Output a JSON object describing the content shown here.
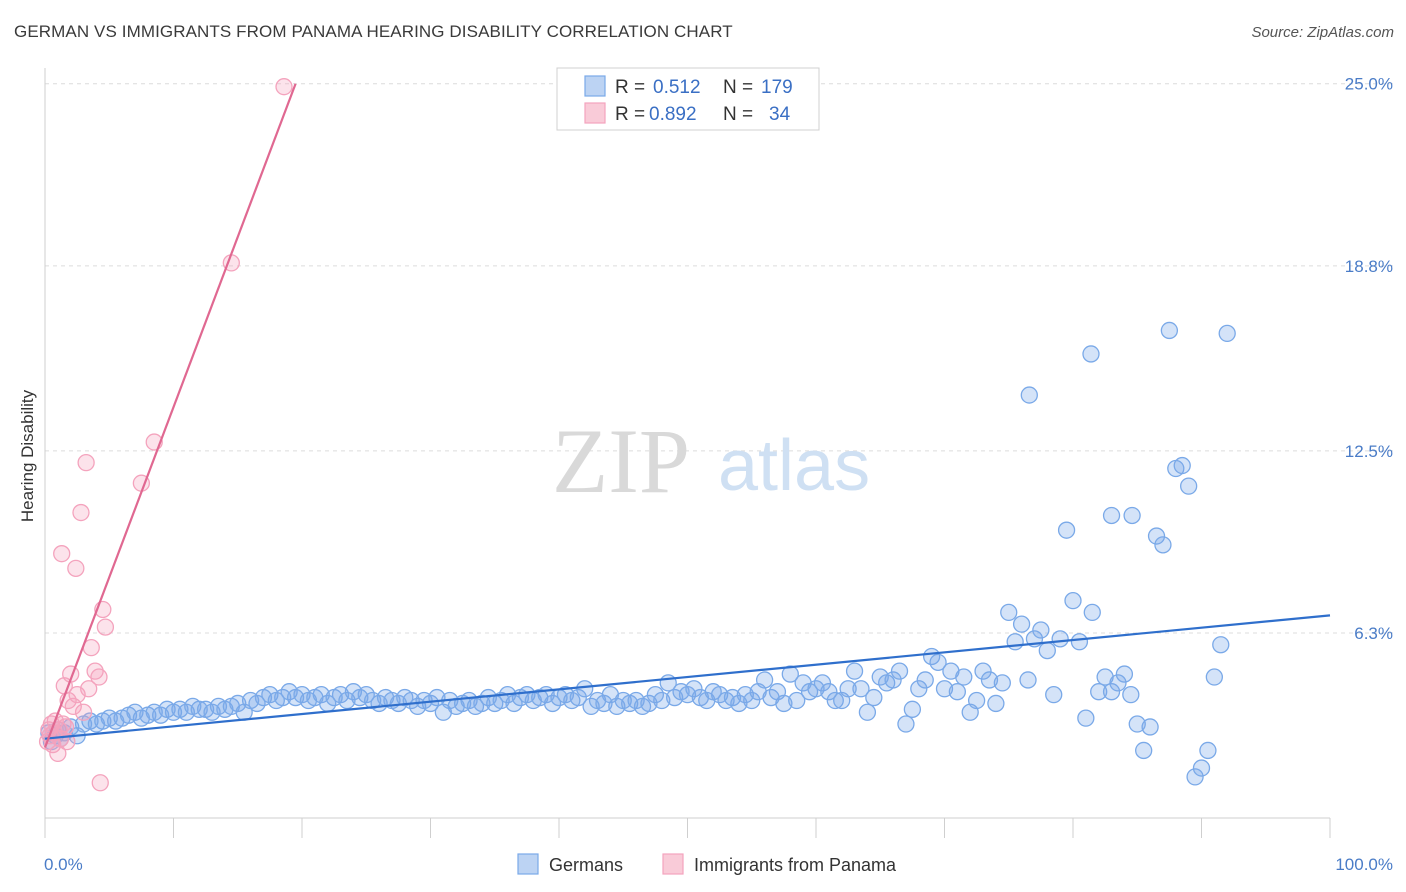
{
  "title": "GERMAN VS IMMIGRANTS FROM PANAMA HEARING DISABILITY CORRELATION CHART",
  "source": "Source: ZipAtlas.com",
  "watermark": {
    "zip": "ZIP",
    "atlas": "atlas"
  },
  "colors": {
    "german": "#7aa9e8",
    "german_line": "#2f6fcc",
    "panama": "#f4a3bd",
    "panama_line": "#e06891",
    "axis_text": "#4a7cc7"
  },
  "legend": {
    "rows": [
      {
        "r_label": "R = ",
        "r_value": "0.512",
        "n_label": "N = ",
        "n_value": "179"
      },
      {
        "r_label": "R = ",
        "r_value": "0.892",
        "n_label": "N = ",
        "n_value": "34"
      }
    ]
  },
  "bottom_legend": [
    "Germans",
    "Immigrants from Panama"
  ],
  "chart_data": {
    "type": "scatter",
    "ylabel": "Hearing Disability",
    "xlim": [
      0,
      100
    ],
    "ylim": [
      0,
      25.4
    ],
    "x_tick_labels": [
      "0.0%",
      "100.0%"
    ],
    "y_ticks": [
      6.3,
      12.5,
      18.8,
      25.0
    ],
    "y_tick_labels": [
      "6.3%",
      "12.5%",
      "18.8%",
      "25.0%"
    ],
    "grid": "horizontal dashed",
    "series": [
      {
        "name": "Germans",
        "trend": [
          [
            0,
            2.7
          ],
          [
            100,
            6.9
          ]
        ],
        "points": [
          [
            0.3,
            2.9
          ],
          [
            0.5,
            2.6
          ],
          [
            0.8,
            2.8
          ],
          [
            1.0,
            3.0
          ],
          [
            1.2,
            2.7
          ],
          [
            1.5,
            2.9
          ],
          [
            2.0,
            3.1
          ],
          [
            2.5,
            2.8
          ],
          [
            3.0,
            3.2
          ],
          [
            3.5,
            3.3
          ],
          [
            4.0,
            3.2
          ],
          [
            4.5,
            3.3
          ],
          [
            5.0,
            3.4
          ],
          [
            5.5,
            3.3
          ],
          [
            6.0,
            3.4
          ],
          [
            6.5,
            3.5
          ],
          [
            7.0,
            3.6
          ],
          [
            7.5,
            3.4
          ],
          [
            8.0,
            3.5
          ],
          [
            8.5,
            3.6
          ],
          [
            9.0,
            3.5
          ],
          [
            9.5,
            3.7
          ],
          [
            10.0,
            3.6
          ],
          [
            10.5,
            3.7
          ],
          [
            11.0,
            3.6
          ],
          [
            11.5,
            3.8
          ],
          [
            12.0,
            3.7
          ],
          [
            12.5,
            3.7
          ],
          [
            13.0,
            3.6
          ],
          [
            13.5,
            3.8
          ],
          [
            14.0,
            3.7
          ],
          [
            14.5,
            3.8
          ],
          [
            15.0,
            3.9
          ],
          [
            15.5,
            3.6
          ],
          [
            16.0,
            4.0
          ],
          [
            16.5,
            3.9
          ],
          [
            17.0,
            4.1
          ],
          [
            17.5,
            4.2
          ],
          [
            18.0,
            4.0
          ],
          [
            18.5,
            4.1
          ],
          [
            19.0,
            4.3
          ],
          [
            19.5,
            4.1
          ],
          [
            20.0,
            4.2
          ],
          [
            20.5,
            4.0
          ],
          [
            21.0,
            4.1
          ],
          [
            21.5,
            4.2
          ],
          [
            22.0,
            3.9
          ],
          [
            22.5,
            4.1
          ],
          [
            23.0,
            4.2
          ],
          [
            23.5,
            4.0
          ],
          [
            24.0,
            4.3
          ],
          [
            24.5,
            4.1
          ],
          [
            25.0,
            4.2
          ],
          [
            25.5,
            4.0
          ],
          [
            26.0,
            3.9
          ],
          [
            26.5,
            4.1
          ],
          [
            27.0,
            4.0
          ],
          [
            27.5,
            3.9
          ],
          [
            28.0,
            4.1
          ],
          [
            28.5,
            4.0
          ],
          [
            29.0,
            3.8
          ],
          [
            29.5,
            4.0
          ],
          [
            30.0,
            3.9
          ],
          [
            30.5,
            4.1
          ],
          [
            31.0,
            3.6
          ],
          [
            31.5,
            4.0
          ],
          [
            32.0,
            3.8
          ],
          [
            32.5,
            3.9
          ],
          [
            33.0,
            4.0
          ],
          [
            33.5,
            3.8
          ],
          [
            34.0,
            3.9
          ],
          [
            34.5,
            4.1
          ],
          [
            35.0,
            3.9
          ],
          [
            35.5,
            4.0
          ],
          [
            36.0,
            4.2
          ],
          [
            36.5,
            3.9
          ],
          [
            37.0,
            4.1
          ],
          [
            37.5,
            4.2
          ],
          [
            38.0,
            4.0
          ],
          [
            38.5,
            4.1
          ],
          [
            39.0,
            4.2
          ],
          [
            39.5,
            3.9
          ],
          [
            40.0,
            4.1
          ],
          [
            40.5,
            4.2
          ],
          [
            41.0,
            4.0
          ],
          [
            41.5,
            4.1
          ],
          [
            42.0,
            4.4
          ],
          [
            42.5,
            3.8
          ],
          [
            43.0,
            4.0
          ],
          [
            43.5,
            3.9
          ],
          [
            44.0,
            4.2
          ],
          [
            44.5,
            3.8
          ],
          [
            45.0,
            4.0
          ],
          [
            45.5,
            3.9
          ],
          [
            46.0,
            4.0
          ],
          [
            46.5,
            3.8
          ],
          [
            47.0,
            3.9
          ],
          [
            47.5,
            4.2
          ],
          [
            48.0,
            4.0
          ],
          [
            48.5,
            4.6
          ],
          [
            49.0,
            4.1
          ],
          [
            49.5,
            4.3
          ],
          [
            50.0,
            4.2
          ],
          [
            50.5,
            4.4
          ],
          [
            51.0,
            4.1
          ],
          [
            51.5,
            4.0
          ],
          [
            52.0,
            4.3
          ],
          [
            52.5,
            4.2
          ],
          [
            53.0,
            4.0
          ],
          [
            53.5,
            4.1
          ],
          [
            54.0,
            3.9
          ],
          [
            54.5,
            4.2
          ],
          [
            55.0,
            4.0
          ],
          [
            55.5,
            4.3
          ],
          [
            56.0,
            4.7
          ],
          [
            56.5,
            4.1
          ],
          [
            57.0,
            4.3
          ],
          [
            57.5,
            3.9
          ],
          [
            58.0,
            4.9
          ],
          [
            58.5,
            4.0
          ],
          [
            59.0,
            4.6
          ],
          [
            59.5,
            4.3
          ],
          [
            60.0,
            4.4
          ],
          [
            60.5,
            4.6
          ],
          [
            61.0,
            4.3
          ],
          [
            61.5,
            4.0
          ],
          [
            62.0,
            4.0
          ],
          [
            62.5,
            4.4
          ],
          [
            63.0,
            5.0
          ],
          [
            63.5,
            4.4
          ],
          [
            64.0,
            3.6
          ],
          [
            64.5,
            4.1
          ],
          [
            65.0,
            4.8
          ],
          [
            65.5,
            4.6
          ],
          [
            66.0,
            4.7
          ],
          [
            66.5,
            5.0
          ],
          [
            67.0,
            3.2
          ],
          [
            67.5,
            3.7
          ],
          [
            68.0,
            4.4
          ],
          [
            68.5,
            4.7
          ],
          [
            69.0,
            5.5
          ],
          [
            69.5,
            5.3
          ],
          [
            70.0,
            4.4
          ],
          [
            70.5,
            5.0
          ],
          [
            71.0,
            4.3
          ],
          [
            71.5,
            4.8
          ],
          [
            72.0,
            3.6
          ],
          [
            72.5,
            4.0
          ],
          [
            73.0,
            5.0
          ],
          [
            73.5,
            4.7
          ],
          [
            74.0,
            3.9
          ],
          [
            74.5,
            4.6
          ],
          [
            75.0,
            7.0
          ],
          [
            75.5,
            6.0
          ],
          [
            76.0,
            6.6
          ],
          [
            76.5,
            4.7
          ],
          [
            77.0,
            6.1
          ],
          [
            77.5,
            6.4
          ],
          [
            78.0,
            5.7
          ],
          [
            78.5,
            4.2
          ],
          [
            79.0,
            6.1
          ],
          [
            79.5,
            9.8
          ],
          [
            80.0,
            7.4
          ],
          [
            80.5,
            6.0
          ],
          [
            81.0,
            3.4
          ],
          [
            81.5,
            7.0
          ],
          [
            82.0,
            4.3
          ],
          [
            82.5,
            4.8
          ],
          [
            83.0,
            4.3
          ],
          [
            83.5,
            4.6
          ],
          [
            84.0,
            4.9
          ],
          [
            84.5,
            4.2
          ],
          [
            85.0,
            3.2
          ],
          [
            85.5,
            2.3
          ],
          [
            86.0,
            3.1
          ],
          [
            86.5,
            9.6
          ],
          [
            87.0,
            9.3
          ],
          [
            87.5,
            16.6
          ],
          [
            88.0,
            11.9
          ],
          [
            88.5,
            12.0
          ],
          [
            89.0,
            11.3
          ],
          [
            89.5,
            1.4
          ],
          [
            90.0,
            1.7
          ],
          [
            90.5,
            2.3
          ],
          [
            91.0,
            4.8
          ],
          [
            91.5,
            5.9
          ],
          [
            92.0,
            16.5
          ],
          [
            76.6,
            14.4
          ],
          [
            81.4,
            15.8
          ],
          [
            84.6,
            10.3
          ],
          [
            83.0,
            10.3
          ]
        ]
      },
      {
        "name": "Immigrants from Panama",
        "trend": [
          [
            0,
            2.4
          ],
          [
            19.5,
            25.0
          ]
        ],
        "points": [
          [
            0.2,
            2.6
          ],
          [
            0.3,
            3.0
          ],
          [
            0.4,
            2.8
          ],
          [
            0.5,
            3.2
          ],
          [
            0.6,
            2.5
          ],
          [
            0.7,
            2.9
          ],
          [
            0.8,
            3.3
          ],
          [
            1.0,
            2.2
          ],
          [
            1.1,
            3.0
          ],
          [
            1.2,
            2.7
          ],
          [
            1.3,
            9.0
          ],
          [
            1.4,
            3.2
          ],
          [
            1.5,
            4.5
          ],
          [
            1.6,
            3.1
          ],
          [
            1.7,
            2.6
          ],
          [
            1.8,
            4.0
          ],
          [
            2.0,
            4.9
          ],
          [
            2.2,
            3.8
          ],
          [
            2.4,
            8.5
          ],
          [
            2.5,
            4.2
          ],
          [
            2.8,
            10.4
          ],
          [
            3.0,
            3.6
          ],
          [
            3.2,
            12.1
          ],
          [
            3.4,
            4.4
          ],
          [
            3.6,
            5.8
          ],
          [
            3.9,
            5.0
          ],
          [
            4.2,
            4.8
          ],
          [
            4.3,
            1.2
          ],
          [
            4.5,
            7.1
          ],
          [
            4.7,
            6.5
          ],
          [
            7.5,
            11.4
          ],
          [
            8.5,
            12.8
          ],
          [
            14.5,
            18.9
          ],
          [
            18.6,
            24.9
          ]
        ]
      }
    ]
  }
}
